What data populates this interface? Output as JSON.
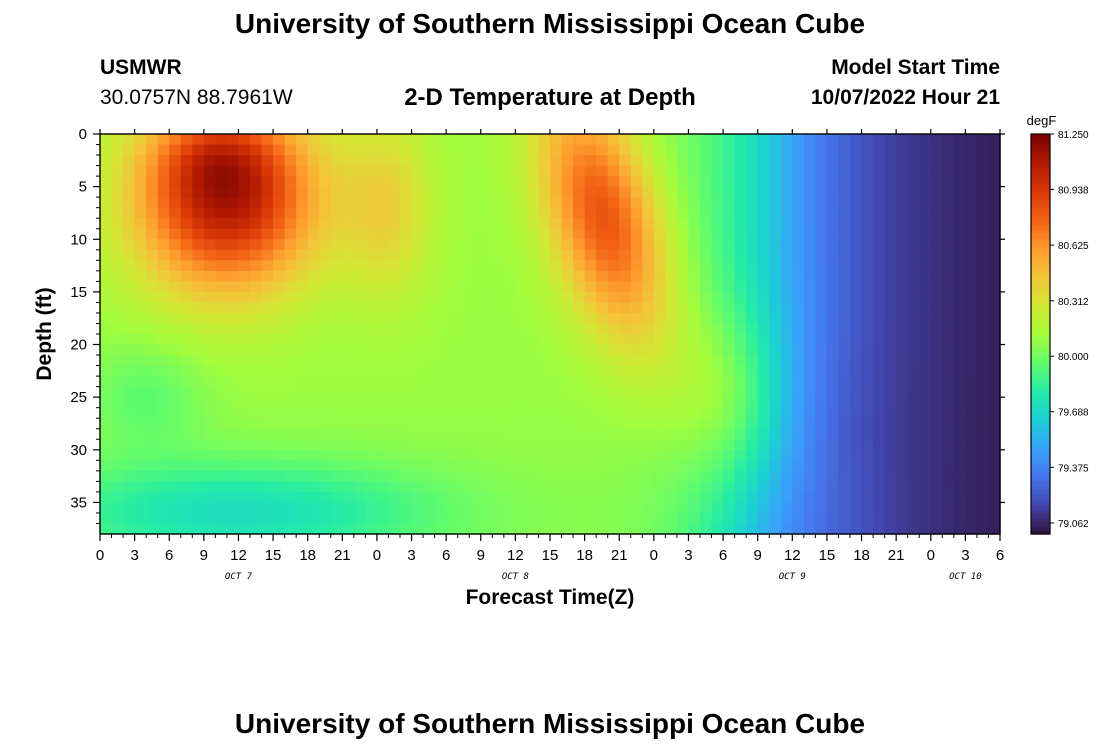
{
  "header": {
    "title": "University of Southern Mississippi Ocean Cube",
    "station_id": "USMWR",
    "station_coords": "30.0757N  88.7961W",
    "plot_title": "2-D Temperature at Depth",
    "model_start_label": "Model Start Time",
    "model_start_value": "10/07/2022 Hour 21"
  },
  "footer": {
    "title": "University of Southern Mississippi Ocean Cube"
  },
  "chart_data": {
    "type": "heatmap",
    "title": "2-D Temperature at Depth",
    "xlabel": "Forecast Time(Z)",
    "ylabel": "Depth (ft)",
    "x_tick_labels": [
      "0",
      "3",
      "6",
      "9",
      "12",
      "15",
      "18",
      "21",
      "0",
      "3",
      "6",
      "9",
      "12",
      "15",
      "18",
      "21",
      "0",
      "3",
      "6",
      "9",
      "12",
      "15",
      "18",
      "21",
      "0",
      "3",
      "6"
    ],
    "x_day_labels": [
      {
        "label": "OCT 7",
        "tick_index": 4
      },
      {
        "label": "OCT 8",
        "tick_index": 12
      },
      {
        "label": "OCT 9",
        "tick_index": 20
      },
      {
        "label": "OCT 10",
        "tick_index": 25
      }
    ],
    "x_range_hours": [
      0,
      78
    ],
    "y_tick_labels": [
      "0",
      "5",
      "10",
      "15",
      "20",
      "25",
      "30",
      "35"
    ],
    "y_range_ft": [
      0,
      38
    ],
    "y_inverted": true,
    "colorbar": {
      "unit": "degF",
      "min": 79.0,
      "max": 81.25,
      "tick_labels": [
        "81.250",
        "80.938",
        "80.625",
        "80.312",
        "80.000",
        "79.688",
        "79.375",
        "79.062"
      ],
      "colormap": [
        "#30123b",
        "#4145ab",
        "#4675ed",
        "#39a2fc",
        "#1bcfd4",
        "#24eca6",
        "#61fc6c",
        "#a4fc3b",
        "#d1e834",
        "#f3c63a",
        "#fe9b2d",
        "#f36315",
        "#d93806",
        "#b11901",
        "#7a0403"
      ]
    },
    "field_description_points": [
      {
        "hour": 9,
        "depth_ft": 4,
        "degF": 81.25
      },
      {
        "hour": 12,
        "depth_ft": 12,
        "degF": 80.75
      },
      {
        "hour": 0,
        "depth_ft": 5,
        "degF": 80.1
      },
      {
        "hour": 10,
        "depth_ft": 35,
        "degF": 79.75
      },
      {
        "hour": 28,
        "depth_ft": 10,
        "degF": 80.1
      },
      {
        "hour": 42,
        "depth_ft": 8,
        "degF": 80.8
      },
      {
        "hour": 52,
        "depth_ft": 20,
        "degF": 80.1
      },
      {
        "hour": 58,
        "depth_ft": 15,
        "degF": 79.45
      },
      {
        "hour": 66,
        "depth_ft": 30,
        "degF": 79.1
      },
      {
        "hour": 76,
        "depth_ft": 5,
        "degF": 79.02
      }
    ]
  }
}
